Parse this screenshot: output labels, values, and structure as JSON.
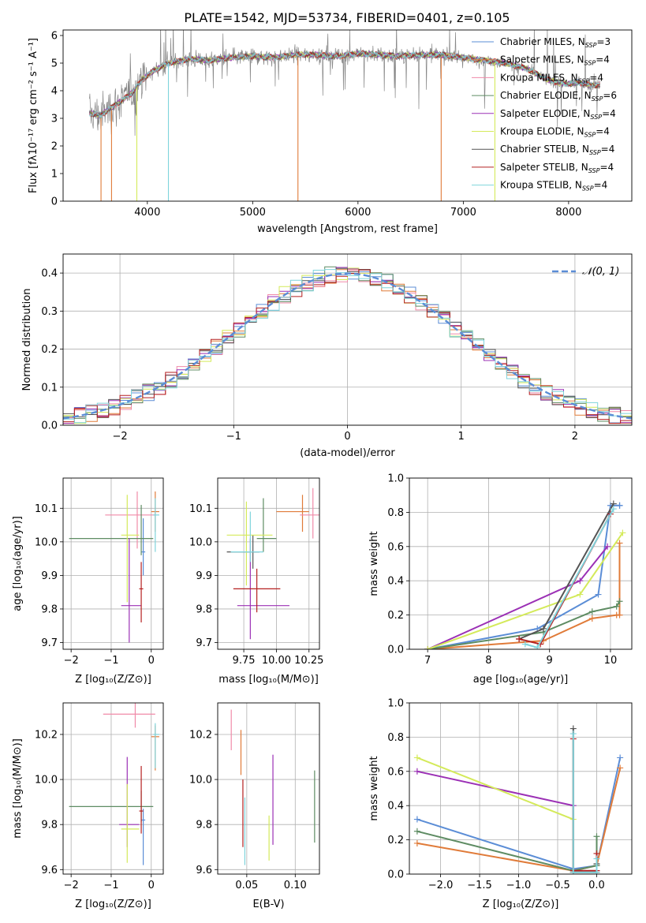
{
  "figure": {
    "title": "PLATE=1542, MJD=53734, FIBERID=0401, z=0.105"
  },
  "chart_data": [
    {
      "type": "line",
      "panel": "spectrum",
      "xlabel": "wavelength [Angstrom, rest frame]",
      "ylabel": "Flux [fλ10⁻¹⁷ erg cm⁻² s⁻¹ A⁻¹]",
      "xlim": [
        3200,
        8600
      ],
      "ylim": [
        0,
        6.2
      ],
      "xticks": [
        4000,
        5000,
        6000,
        7000,
        8000
      ],
      "yticks": [
        0,
        1,
        2,
        3,
        4,
        5,
        6
      ],
      "grid": false,
      "legend_position": "right",
      "series": [
        {
          "name": "Chabrier MILES, N_SSP=3",
          "label_main": "Chabrier MILES, N",
          "label_sub": "SSP",
          "label_tail": "=3",
          "color": "#5b8dd6"
        },
        {
          "name": "Salpeter MILES, N_SSP=4",
          "label_main": "Salpeter MILES, N",
          "label_sub": "SSP",
          "label_tail": "=4",
          "color": "#e07b39"
        },
        {
          "name": "Kroupa MILES, N_SSP=4",
          "label_main": "Kroupa MILES, N",
          "label_sub": "SSP",
          "label_tail": "=4",
          "color": "#f08aa8"
        },
        {
          "name": "Chabrier ELODIE, N_SSP=6",
          "label_main": "Chabrier ELODIE, N",
          "label_sub": "SSP",
          "label_tail": "=6",
          "color": "#5e8c63"
        },
        {
          "name": "Salpeter ELODIE, N_SSP=4",
          "label_main": "Salpeter ELODIE, N",
          "label_sub": "SSP",
          "label_tail": "=4",
          "color": "#9b30b5"
        },
        {
          "name": "Kroupa ELODIE, N_SSP=4",
          "label_main": "Kroupa ELODIE, N",
          "label_sub": "SSP",
          "label_tail": "=4",
          "color": "#d4ea5a"
        },
        {
          "name": "Chabrier STELIB, N_SSP=4",
          "label_main": "Chabrier STELIB, N",
          "label_sub": "SSP",
          "label_tail": "=4",
          "color": "#555555"
        },
        {
          "name": "Salpeter STELIB, N_SSP=4",
          "label_main": "Salpeter STELIB, N",
          "label_sub": "SSP",
          "label_tail": "=4",
          "color": "#b52020"
        },
        {
          "name": "Kroupa STELIB, N_SSP=4",
          "label_main": "Kroupa STELIB, N",
          "label_sub": "SSP",
          "label_tail": "=4",
          "color": "#7fd4dc"
        }
      ],
      "data_color": "#888888",
      "continuum": {
        "x": [
          3450,
          3550,
          3700,
          3850,
          3950,
          4050,
          4200,
          4400,
          4600,
          4800,
          5000,
          5200,
          5400,
          5600,
          5800,
          6000,
          6200,
          6400,
          6600,
          6800,
          7000,
          7200,
          7400,
          7600,
          7700,
          7800,
          7900,
          8000,
          8100,
          8200,
          8300
        ],
        "y": [
          3.2,
          3.1,
          3.5,
          3.9,
          4.4,
          4.7,
          5.0,
          5.15,
          5.1,
          5.2,
          5.25,
          5.2,
          5.3,
          5.3,
          5.25,
          5.35,
          5.3,
          5.25,
          5.3,
          5.3,
          5.2,
          5.1,
          5.0,
          4.8,
          4.6,
          4.4,
          4.3,
          4.25,
          4.3,
          4.2,
          4.2
        ]
      }
    },
    {
      "type": "line",
      "panel": "residual-histogram",
      "xlabel": "(data-model)/error",
      "ylabel": "Normed distribution",
      "xlim": [
        -2.5,
        2.5
      ],
      "ylim": [
        0,
        0.45
      ],
      "xticks": [
        -2,
        -1,
        0,
        1,
        2
      ],
      "yticks": [
        0.0,
        0.1,
        0.2,
        0.3,
        0.4
      ],
      "grid": true,
      "legend": "𝒩(0, 1)",
      "legend_position": "top-right",
      "gaussian": {
        "mean": 0,
        "sigma": 1
      }
    },
    {
      "type": "scatter",
      "panel": "Z-vs-age",
      "xlabel": "Z [log₁₀(Z/Z⊙)]",
      "ylabel": "age  [log₁₀(age/yr)]",
      "xlim": [
        -2.2,
        0.3
      ],
      "ylim": [
        9.68,
        10.19
      ],
      "xticks": [
        -2,
        -1,
        0
      ],
      "yticks": [
        9.7,
        9.8,
        9.9,
        10.0,
        10.1
      ],
      "grid": true,
      "points": [
        {
          "x": -0.2,
          "y": 9.97,
          "xerr": [
            0.05,
            0.05
          ],
          "yerr": [
            0.07,
            0.1
          ],
          "c": 0
        },
        {
          "x": 0.1,
          "y": 10.09,
          "xerr": [
            0.1,
            0.1
          ],
          "yerr": [
            0.06,
            0.06
          ],
          "c": 1
        },
        {
          "x": -0.35,
          "y": 10.08,
          "xerr": [
            0.8,
            0.45
          ],
          "yerr": [
            0.1,
            0.07
          ],
          "c": 2
        },
        {
          "x": -0.25,
          "y": 10.01,
          "xerr": [
            1.8,
            0.3
          ],
          "yerr": [
            0.05,
            0.1
          ],
          "c": 3
        },
        {
          "x": -0.55,
          "y": 9.81,
          "xerr": [
            0.2,
            0.3
          ],
          "yerr": [
            0.11,
            0.2
          ],
          "c": 4
        },
        {
          "x": -0.6,
          "y": 10.02,
          "xerr": [
            0.15,
            0.3
          ],
          "yerr": [
            0.2,
            0.12
          ],
          "c": 5
        },
        {
          "x": -0.25,
          "y": 9.86,
          "xerr": [
            0.05,
            0.05
          ],
          "yerr": [
            0.1,
            0.08
          ],
          "c": 7
        },
        {
          "x": 0.1,
          "y": 10.08,
          "xerr": [
            0.05,
            0.1
          ],
          "yerr": [
            0.11,
            0.05
          ],
          "c": 8
        }
      ]
    },
    {
      "type": "scatter",
      "panel": "mass-vs-age",
      "xlabel": "mass [log₁₀(M/M⊙)]",
      "ylabel": "",
      "xlim": [
        9.55,
        10.33
      ],
      "ylim": [
        9.68,
        10.19
      ],
      "xticks": [
        9.75,
        10.0,
        10.25
      ],
      "yticks": [
        9.7,
        9.8,
        9.9,
        10.0,
        10.1
      ],
      "grid": true,
      "points": [
        {
          "x": 9.82,
          "y": 9.97,
          "xerr": [
            0.2,
            0.05
          ],
          "yerr": [
            0.05,
            0.05
          ],
          "c": 6
        },
        {
          "x": 10.2,
          "y": 10.09,
          "xerr": [
            0.2,
            0.05
          ],
          "yerr": [
            0.06,
            0.05
          ],
          "c": 1
        },
        {
          "x": 10.28,
          "y": 10.08,
          "xerr": [
            0.1,
            0.05
          ],
          "yerr": [
            0.07,
            0.08
          ],
          "c": 2
        },
        {
          "x": 9.9,
          "y": 10.01,
          "xerr": [
            0.05,
            0.1
          ],
          "yerr": [
            0.04,
            0.12
          ],
          "c": 3
        },
        {
          "x": 9.8,
          "y": 9.81,
          "xerr": [
            0.1,
            0.3
          ],
          "yerr": [
            0.1,
            0.2
          ],
          "c": 4
        },
        {
          "x": 9.77,
          "y": 10.02,
          "xerr": [
            0.15,
            0.2
          ],
          "yerr": [
            0.15,
            0.1
          ],
          "c": 5
        },
        {
          "x": 9.85,
          "y": 9.86,
          "xerr": [
            0.18,
            0.18
          ],
          "yerr": [
            0.07,
            0.06
          ],
          "c": 7
        },
        {
          "x": 9.8,
          "y": 9.97,
          "xerr": [
            0.15,
            0.1
          ],
          "yerr": [
            0.03,
            0.12
          ],
          "c": 8
        }
      ]
    },
    {
      "type": "line",
      "panel": "cumulative-mass-vs-age",
      "xlabel": "age  [log₁₀(age/yr)]",
      "ylabel": "mass weight",
      "xlim": [
        6.7,
        10.35
      ],
      "ylim": [
        0,
        1.0
      ],
      "xticks": [
        7,
        8,
        9,
        10
      ],
      "yticks": [
        0.0,
        0.2,
        0.4,
        0.6,
        0.8,
        1.0
      ],
      "grid": true,
      "series": [
        {
          "c": 0,
          "x": [
            7.0,
            8.8,
            9.8,
            10.0,
            10.15,
            10.15
          ],
          "y": [
            0.0,
            0.12,
            0.32,
            0.84,
            0.84,
            0.84
          ]
        },
        {
          "c": 1,
          "x": [
            7.0,
            8.9,
            9.7,
            10.1,
            10.15,
            10.15
          ],
          "y": [
            0.0,
            0.05,
            0.18,
            0.2,
            0.2,
            0.62
          ]
        },
        {
          "c": 3,
          "x": [
            7.0,
            8.9,
            9.7,
            10.1,
            10.15
          ],
          "y": [
            0.0,
            0.1,
            0.22,
            0.25,
            0.28
          ]
        },
        {
          "c": 4,
          "x": [
            7.0,
            9.5,
            9.95
          ],
          "y": [
            0.0,
            0.4,
            0.6
          ]
        },
        {
          "c": 5,
          "x": [
            7.0,
            9.5,
            10.2
          ],
          "y": [
            0.0,
            0.32,
            0.68
          ]
        },
        {
          "c": 6,
          "x": [
            8.5,
            8.9,
            10.05
          ],
          "y": [
            0.06,
            0.12,
            0.85
          ]
        },
        {
          "c": 7,
          "x": [
            8.5,
            8.85,
            10.0
          ],
          "y": [
            0.06,
            0.03,
            0.79
          ]
        },
        {
          "c": 8,
          "x": [
            8.6,
            8.8,
            10.05
          ],
          "y": [
            0.03,
            0.01,
            0.82
          ]
        }
      ]
    },
    {
      "type": "scatter",
      "panel": "Z-vs-mass",
      "xlabel": "Z [log₁₀(Z/Z⊙)]",
      "ylabel": "mass [log₁₀(M/M⊙)]",
      "xlim": [
        -2.2,
        0.3
      ],
      "ylim": [
        9.58,
        10.34
      ],
      "xticks": [
        -2,
        -1,
        0
      ],
      "yticks": [
        9.6,
        9.8,
        10.0,
        10.2
      ],
      "grid": true,
      "points": [
        {
          "x": -0.2,
          "y": 9.82,
          "xerr": [
            0.05,
            0.05
          ],
          "yerr": [
            0.2,
            0.05
          ],
          "c": 0
        },
        {
          "x": 0.1,
          "y": 10.19,
          "xerr": [
            0.1,
            0.1
          ],
          "yerr": [
            0.15,
            0.05
          ],
          "c": 1
        },
        {
          "x": -0.4,
          "y": 10.29,
          "xerr": [
            0.8,
            0.5
          ],
          "yerr": [
            0.06,
            0.06
          ],
          "c": 2
        },
        {
          "x": -0.25,
          "y": 9.88,
          "xerr": [
            1.8,
            0.3
          ],
          "yerr": [
            0.07,
            0.07
          ],
          "c": 3
        },
        {
          "x": -0.6,
          "y": 9.8,
          "xerr": [
            0.2,
            0.3
          ],
          "yerr": [
            0.1,
            0.3
          ],
          "c": 4
        },
        {
          "x": -0.6,
          "y": 9.78,
          "xerr": [
            0.15,
            0.3
          ],
          "yerr": [
            0.15,
            0.2
          ],
          "c": 5
        },
        {
          "x": -0.25,
          "y": 9.86,
          "xerr": [
            0.05,
            0.05
          ],
          "yerr": [
            0.1,
            0.2
          ],
          "c": 7
        },
        {
          "x": 0.1,
          "y": 10.2,
          "xerr": [
            0.05,
            0.1
          ],
          "yerr": [
            0.15,
            0.05
          ],
          "c": 8
        }
      ]
    },
    {
      "type": "scatter",
      "panel": "EBV-vs-mass",
      "xlabel": "E(B-V)",
      "ylabel": "",
      "xlim": [
        0.02,
        0.125
      ],
      "ylim": [
        9.58,
        10.34
      ],
      "xticks": [
        0.05,
        0.1
      ],
      "yticks": [
        9.6,
        9.8,
        10.0,
        10.2
      ],
      "grid": true,
      "points": [
        {
          "x": 0.034,
          "y": 10.22,
          "yerr": [
            0.09,
            0.09
          ],
          "c": 2
        },
        {
          "x": 0.044,
          "y": 10.12,
          "yerr": [
            0.1,
            0.1
          ],
          "c": 1
        },
        {
          "x": 0.046,
          "y": 9.9,
          "yerr": [
            0.2,
            0.1
          ],
          "c": 7
        },
        {
          "x": 0.048,
          "y": 9.82,
          "yerr": [
            0.2,
            0.1
          ],
          "c": 8
        },
        {
          "x": 0.073,
          "y": 9.74,
          "yerr": [
            0.1,
            0.1
          ],
          "c": 5
        },
        {
          "x": 0.077,
          "y": 9.91,
          "yerr": [
            0.2,
            0.2
          ],
          "c": 4
        },
        {
          "x": 0.12,
          "y": 9.88,
          "yerr": [
            0.16,
            0.16
          ],
          "c": 3
        }
      ]
    },
    {
      "type": "line",
      "panel": "cumulative-mass-vs-Z",
      "xlabel": "Z [log₁₀(Z/Z⊙)]",
      "ylabel": "mass weight",
      "xlim": [
        -2.4,
        0.45
      ],
      "ylim": [
        0,
        1.0
      ],
      "xticks": [
        -2.0,
        -1.5,
        -1.0,
        -0.5,
        0.0
      ],
      "yticks": [
        0.0,
        0.2,
        0.4,
        0.6,
        0.8,
        1.0
      ],
      "grid": true,
      "series": [
        {
          "c": 0,
          "x": [
            -2.3,
            -0.3,
            0.0,
            0.3
          ],
          "y": [
            0.32,
            0.03,
            0.05,
            0.68
          ]
        },
        {
          "c": 1,
          "x": [
            -2.3,
            -0.3,
            0.0,
            0.3
          ],
          "y": [
            0.18,
            0.02,
            0.05,
            0.62
          ]
        },
        {
          "c": 3,
          "x": [
            -2.3,
            -0.3,
            0.0,
            0.0
          ],
          "y": [
            0.25,
            0.02,
            0.05,
            0.22
          ]
        },
        {
          "c": 4,
          "x": [
            -2.3,
            -0.3,
            -0.3
          ],
          "y": [
            0.6,
            0.4,
            0.01
          ]
        },
        {
          "c": 5,
          "x": [
            -2.3,
            -0.3,
            -0.3
          ],
          "y": [
            0.68,
            0.32,
            0.01
          ]
        },
        {
          "c": 6,
          "x": [
            -0.3,
            -0.3,
            0.0,
            0.0
          ],
          "y": [
            0.85,
            0.01,
            0.01,
            0.06
          ]
        },
        {
          "c": 7,
          "x": [
            -0.3,
            -0.3,
            0.0,
            0.0
          ],
          "y": [
            0.79,
            0.02,
            0.02,
            0.12
          ]
        },
        {
          "c": 8,
          "x": [
            -0.3,
            -0.3,
            0.0,
            0.0
          ],
          "y": [
            0.82,
            0.01,
            0.01,
            0.09
          ]
        }
      ]
    }
  ]
}
